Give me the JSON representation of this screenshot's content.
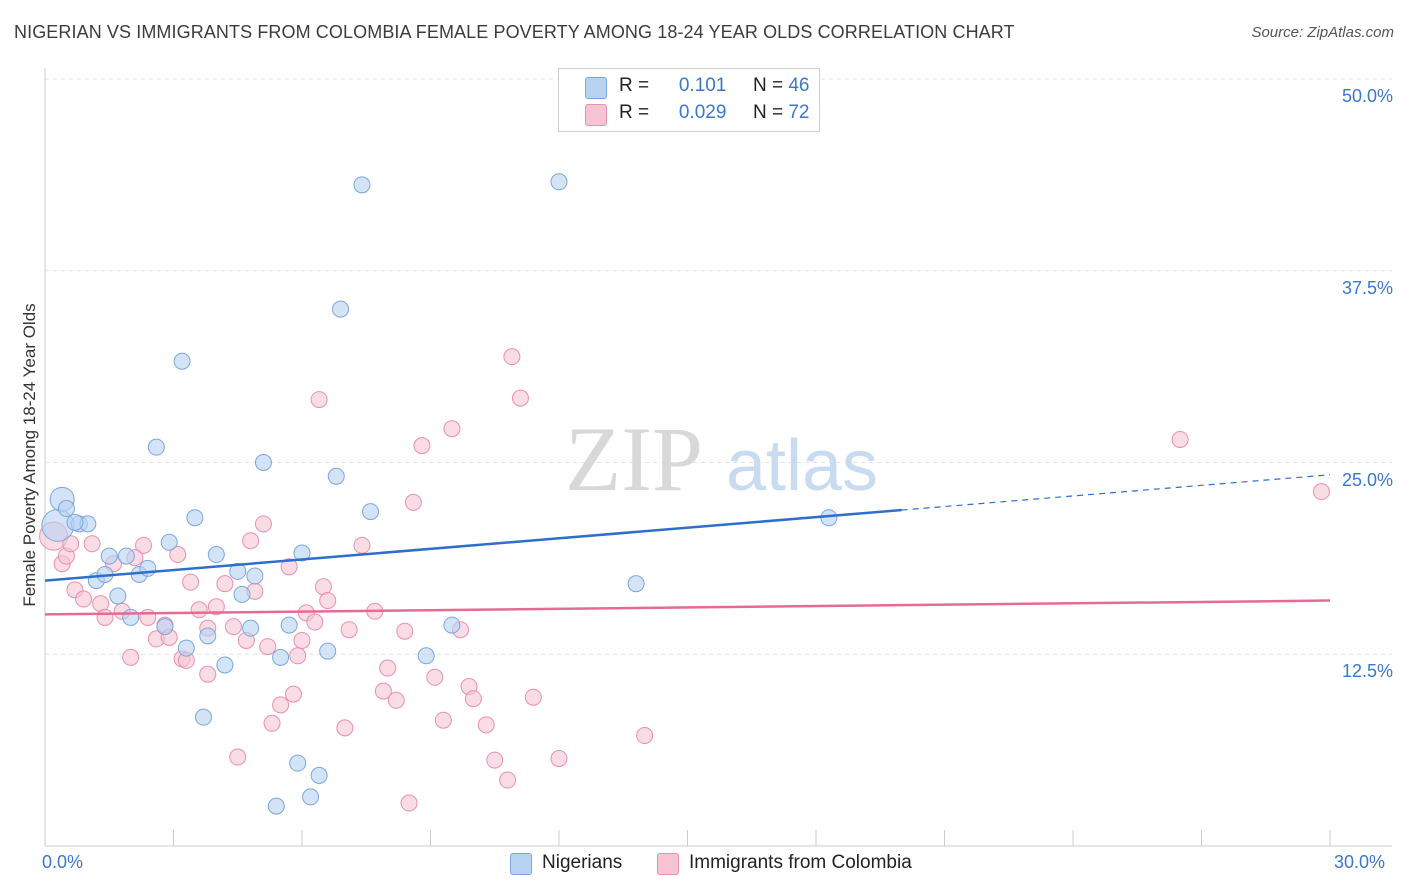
{
  "header": {
    "title": "NIGERIAN VS IMMIGRANTS FROM COLOMBIA FEMALE POVERTY AMONG 18-24 YEAR OLDS CORRELATION CHART",
    "source": "Source: ZipAtlas.com"
  },
  "watermark": {
    "zip": "ZIP",
    "atlas": "atlas"
  },
  "legend": {
    "r_label": "R =",
    "n_label": "N =",
    "series_a": {
      "r": "0.101",
      "n": "46"
    },
    "series_b": {
      "r": "0.029",
      "n": "72"
    }
  },
  "bottom_legend": {
    "series_a": "Nigerians",
    "series_b": "Immigrants from Colombia"
  },
  "colors": {
    "series_a_fill": "#b8d2f2",
    "series_a_stroke": "#7aa6dc",
    "series_a_line": "#2d6fcd",
    "series_b_fill": "#f7c4d4",
    "series_b_stroke": "#e890ad",
    "series_b_line": "#e56b93",
    "tick_text": "#3a78c9",
    "grid": "#e2e2e2"
  },
  "chart_data": {
    "type": "scatter",
    "title": "NIGERIAN VS IMMIGRANTS FROM COLOMBIA FEMALE POVERTY AMONG 18-24 YEAR OLDS CORRELATION CHART",
    "xlabel": "",
    "ylabel": "Female Poverty Among 18-24 Year Olds",
    "xlim": [
      0,
      30
    ],
    "ylim": [
      0,
      50
    ],
    "x_tick_labels": [
      "0.0%",
      "30.0%"
    ],
    "y_ticks": [
      12.5,
      25.0,
      37.5,
      50.0
    ],
    "y_tick_labels": [
      "12.5%",
      "25.0%",
      "37.5%",
      "50.0%"
    ],
    "legend_position": "top-center",
    "series": [
      {
        "name": "Nigerians",
        "r": 0.101,
        "n": 46,
        "trend": {
          "x0": 0,
          "y0": 17.3,
          "x1": 20,
          "y1": 21.9,
          "x_extend": 30,
          "y_extend": 24.2
        },
        "points": [
          [
            0.3,
            20.9,
            16
          ],
          [
            0.4,
            22.6,
            12
          ],
          [
            0.5,
            22.0,
            8
          ],
          [
            0.8,
            21.0,
            8
          ],
          [
            1.0,
            21.0,
            8
          ],
          [
            1.2,
            17.3,
            8
          ],
          [
            1.4,
            17.7,
            8
          ],
          [
            1.5,
            18.9,
            8
          ],
          [
            1.7,
            16.3,
            8
          ],
          [
            1.9,
            18.9,
            8
          ],
          [
            2.0,
            14.9,
            8
          ],
          [
            2.2,
            17.7,
            8
          ],
          [
            2.4,
            18.1,
            8
          ],
          [
            2.6,
            26.0,
            8
          ],
          [
            2.8,
            14.3,
            8
          ],
          [
            2.9,
            19.8,
            8
          ],
          [
            3.2,
            31.6,
            8
          ],
          [
            3.3,
            12.9,
            8
          ],
          [
            3.5,
            21.4,
            8
          ],
          [
            3.7,
            8.4,
            8
          ],
          [
            3.8,
            13.7,
            8
          ],
          [
            4.0,
            19.0,
            8
          ],
          [
            4.2,
            11.8,
            8
          ],
          [
            4.5,
            17.9,
            8
          ],
          [
            4.6,
            16.4,
            8
          ],
          [
            4.8,
            14.2,
            8
          ],
          [
            4.9,
            17.6,
            8
          ],
          [
            5.1,
            25.0,
            8
          ],
          [
            5.4,
            2.6,
            8
          ],
          [
            5.5,
            12.3,
            8
          ],
          [
            5.7,
            14.4,
            8
          ],
          [
            5.9,
            5.4,
            8
          ],
          [
            6.0,
            19.1,
            8
          ],
          [
            6.2,
            3.2,
            8
          ],
          [
            6.4,
            4.6,
            8
          ],
          [
            6.6,
            12.7,
            8
          ],
          [
            6.8,
            24.1,
            8
          ],
          [
            6.9,
            35.0,
            8
          ],
          [
            7.4,
            43.1,
            8
          ],
          [
            7.6,
            21.8,
            8
          ],
          [
            8.9,
            12.4,
            8
          ],
          [
            9.5,
            14.4,
            8
          ],
          [
            12.0,
            43.3,
            8
          ],
          [
            13.8,
            17.1,
            8
          ],
          [
            18.3,
            21.4,
            8
          ],
          [
            0.7,
            21.1,
            8
          ]
        ]
      },
      {
        "name": "Immigrants from Colombia",
        "r": 0.029,
        "n": 72,
        "trend": {
          "x0": 0,
          "y0": 15.1,
          "x1": 30,
          "y1": 16.0
        },
        "points": [
          [
            0.2,
            20.2,
            14
          ],
          [
            0.4,
            18.4,
            8
          ],
          [
            0.5,
            18.9,
            8
          ],
          [
            0.7,
            16.7,
            8
          ],
          [
            0.9,
            16.1,
            8
          ],
          [
            1.1,
            19.7,
            8
          ],
          [
            1.3,
            15.8,
            8
          ],
          [
            1.4,
            14.9,
            8
          ],
          [
            1.6,
            18.4,
            8
          ],
          [
            1.8,
            15.3,
            8
          ],
          [
            2.0,
            12.3,
            8
          ],
          [
            2.3,
            19.6,
            8
          ],
          [
            2.4,
            14.9,
            8
          ],
          [
            2.6,
            13.5,
            8
          ],
          [
            2.8,
            14.4,
            8
          ],
          [
            2.9,
            13.6,
            8
          ],
          [
            3.1,
            19.0,
            8
          ],
          [
            3.2,
            12.2,
            8
          ],
          [
            3.4,
            17.2,
            8
          ],
          [
            3.6,
            15.4,
            8
          ],
          [
            3.8,
            14.2,
            8
          ],
          [
            3.8,
            11.2,
            8
          ],
          [
            4.0,
            15.6,
            8
          ],
          [
            4.2,
            17.1,
            8
          ],
          [
            4.4,
            14.3,
            8
          ],
          [
            4.5,
            5.8,
            8
          ],
          [
            4.7,
            13.4,
            8
          ],
          [
            4.8,
            19.9,
            8
          ],
          [
            4.9,
            16.6,
            8
          ],
          [
            5.1,
            21.0,
            8
          ],
          [
            5.2,
            13.0,
            8
          ],
          [
            5.3,
            8.0,
            8
          ],
          [
            5.5,
            9.2,
            8
          ],
          [
            5.7,
            18.2,
            8
          ],
          [
            5.8,
            9.9,
            8
          ],
          [
            5.9,
            12.4,
            8
          ],
          [
            6.0,
            13.4,
            8
          ],
          [
            6.1,
            15.2,
            8
          ],
          [
            6.3,
            14.6,
            8
          ],
          [
            6.4,
            29.1,
            8
          ],
          [
            6.5,
            16.9,
            8
          ],
          [
            6.6,
            16.0,
            8
          ],
          [
            7.0,
            7.7,
            8
          ],
          [
            7.1,
            14.1,
            8
          ],
          [
            7.4,
            19.6,
            8
          ],
          [
            7.7,
            15.3,
            8
          ],
          [
            7.9,
            10.1,
            8
          ],
          [
            8.0,
            11.6,
            8
          ],
          [
            8.2,
            9.5,
            8
          ],
          [
            8.4,
            14.0,
            8
          ],
          [
            8.5,
            2.8,
            8
          ],
          [
            8.6,
            22.4,
            8
          ],
          [
            8.8,
            26.1,
            8
          ],
          [
            9.1,
            11.0,
            8
          ],
          [
            9.3,
            8.2,
            8
          ],
          [
            9.5,
            27.2,
            8
          ],
          [
            9.7,
            14.1,
            8
          ],
          [
            9.9,
            10.4,
            8
          ],
          [
            10.0,
            9.6,
            8
          ],
          [
            10.3,
            7.9,
            8
          ],
          [
            10.5,
            5.6,
            8
          ],
          [
            10.8,
            4.3,
            8
          ],
          [
            10.9,
            31.9,
            8
          ],
          [
            11.1,
            29.2,
            8
          ],
          [
            11.4,
            9.7,
            8
          ],
          [
            12.0,
            5.7,
            8
          ],
          [
            14.0,
            7.2,
            8
          ],
          [
            26.5,
            26.5,
            8
          ],
          [
            29.8,
            23.1,
            8
          ],
          [
            0.6,
            19.7,
            8
          ],
          [
            2.1,
            18.8,
            8
          ],
          [
            3.3,
            12.1,
            8
          ]
        ]
      }
    ]
  }
}
